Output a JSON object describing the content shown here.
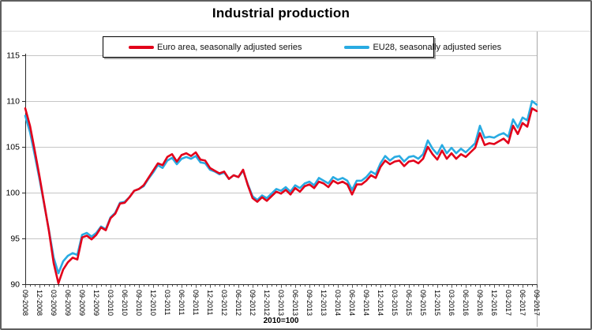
{
  "chart_data": {
    "type": "line",
    "title": "Industrial production",
    "note": "2010=100",
    "x_unit": "month",
    "x_start": "09-2008",
    "x_end": "09-2017",
    "x_tick_labels": [
      "09-2008",
      "12-2008",
      "03-2009",
      "06-2009",
      "09-2009",
      "12-2009",
      "03-2010",
      "06-2010",
      "09-2010",
      "12-2010",
      "03-2011",
      "06-2011",
      "09-2011",
      "12-2011",
      "03-2012",
      "06-2012",
      "09-2012",
      "12-2012",
      "03-2013",
      "06-2013",
      "09-2013",
      "12-2013",
      "03-2014",
      "06-2014",
      "09-2014",
      "12-2014",
      "03-2015",
      "06-2015",
      "09-2015",
      "12-2015",
      "03-2016",
      "06-2016",
      "09-2016",
      "12-2016",
      "03-2017",
      "06-2017",
      "09-2017"
    ],
    "ylim": [
      90,
      115
    ],
    "y_ticks": [
      90,
      95,
      100,
      105,
      110,
      115
    ],
    "grid": true,
    "legend_position": "top",
    "colors": {
      "euro_area": "#e2001a",
      "eu28": "#29abe2",
      "gridline": "#c6c6c6",
      "axis": "#2b2b2b",
      "plot_right_border": "#a8a8a8"
    },
    "series": [
      {
        "name": "Euro area, seasonally adjusted series",
        "color": "#e2001a",
        "values": [
          109.2,
          107.3,
          104.6,
          101.8,
          98.8,
          95.8,
          92.3,
          90.1,
          91.6,
          92.4,
          92.9,
          92.7,
          95.1,
          95.3,
          94.9,
          95.4,
          96.2,
          95.9,
          97.2,
          97.7,
          98.8,
          98.9,
          99.5,
          100.2,
          100.4,
          100.8,
          101.6,
          102.4,
          103.2,
          103.0,
          103.9,
          104.2,
          103.4,
          104.1,
          104.3,
          104.0,
          104.4,
          103.6,
          103.5,
          102.7,
          102.4,
          102.1,
          102.3,
          101.5,
          101.9,
          101.7,
          102.5,
          100.8,
          99.4,
          99.0,
          99.5,
          99.1,
          99.6,
          100.1,
          99.9,
          100.3,
          99.8,
          100.5,
          100.1,
          100.7,
          100.9,
          100.5,
          101.2,
          101.0,
          100.6,
          101.3,
          101.0,
          101.2,
          100.9,
          99.8,
          100.9,
          100.9,
          101.3,
          101.9,
          101.6,
          102.8,
          103.5,
          103.1,
          103.4,
          103.5,
          102.9,
          103.4,
          103.5,
          103.2,
          103.7,
          105.0,
          104.2,
          103.6,
          104.6,
          103.7,
          104.3,
          103.7,
          104.2,
          103.9,
          104.4,
          104.9,
          106.5,
          105.2,
          105.4,
          105.3,
          105.6,
          105.9,
          105.4,
          107.3,
          106.4,
          107.6,
          107.2,
          109.2,
          108.9
        ]
      },
      {
        "name": "EU28, seasonally adjusted series",
        "color": "#29abe2",
        "values": [
          108.4,
          106.6,
          104.1,
          101.5,
          98.7,
          95.9,
          92.9,
          91.2,
          92.5,
          93.1,
          93.4,
          93.2,
          95.4,
          95.6,
          95.2,
          95.6,
          96.3,
          96.0,
          97.3,
          97.8,
          98.9,
          99.0,
          99.5,
          100.2,
          100.4,
          100.7,
          101.5,
          102.2,
          103.0,
          102.7,
          103.5,
          103.8,
          103.1,
          103.7,
          103.9,
          103.7,
          104.0,
          103.3,
          103.2,
          102.5,
          102.3,
          102.0,
          102.2,
          101.5,
          101.9,
          101.7,
          102.4,
          100.9,
          99.6,
          99.2,
          99.7,
          99.4,
          99.9,
          100.4,
          100.2,
          100.6,
          100.1,
          100.8,
          100.5,
          101.0,
          101.2,
          100.8,
          101.6,
          101.3,
          101.0,
          101.7,
          101.4,
          101.6,
          101.3,
          100.3,
          101.3,
          101.3,
          101.7,
          102.3,
          102.0,
          103.2,
          104.0,
          103.5,
          103.9,
          104.0,
          103.4,
          103.9,
          104.0,
          103.7,
          104.2,
          105.7,
          104.8,
          104.2,
          105.2,
          104.3,
          104.9,
          104.3,
          104.8,
          104.4,
          104.9,
          105.4,
          107.3,
          106.0,
          106.1,
          106.0,
          106.3,
          106.5,
          106.1,
          108.0,
          107.1,
          108.2,
          107.9,
          110.0,
          109.6
        ]
      }
    ]
  }
}
